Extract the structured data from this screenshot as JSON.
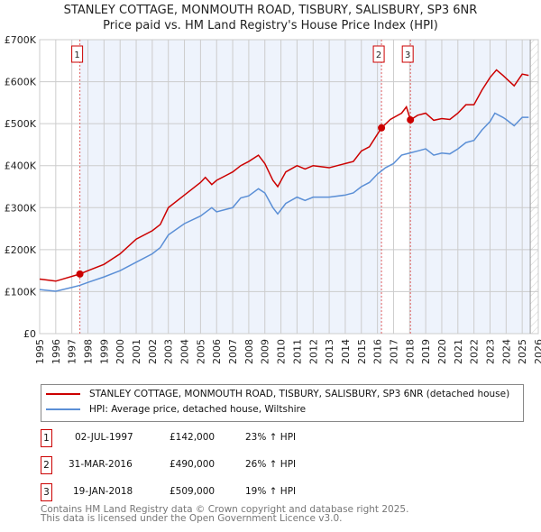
{
  "chart_data": {
    "type": "line",
    "title": "STANLEY COTTAGE, MONMOUTH ROAD, TISBURY, SALISBURY, SP3 6NR",
    "subtitle": "Price paid vs. HM Land Registry's House Price Index (HPI)",
    "xlim": [
      1995,
      2026
    ],
    "ylim": [
      0,
      700000
    ],
    "yticks": [
      {
        "v": 0,
        "label": "£0"
      },
      {
        "v": 100000,
        "label": "£100K"
      },
      {
        "v": 200000,
        "label": "£200K"
      },
      {
        "v": 300000,
        "label": "£300K"
      },
      {
        "v": 400000,
        "label": "£400K"
      },
      {
        "v": 500000,
        "label": "£500K"
      },
      {
        "v": 600000,
        "label": "£600K"
      },
      {
        "v": 700000,
        "label": "£700K"
      }
    ],
    "xticks": [
      "1995",
      "1996",
      "1997",
      "1998",
      "1999",
      "2000",
      "2001",
      "2002",
      "2003",
      "2004",
      "2005",
      "2006",
      "2007",
      "2008",
      "2009",
      "2010",
      "2011",
      "2012",
      "2013",
      "2014",
      "2015",
      "2016",
      "2017",
      "2018",
      "2019",
      "2020",
      "2021",
      "2022",
      "2023",
      "2024",
      "2025",
      "2026"
    ],
    "series": [
      {
        "name": "STANLEY COTTAGE, MONMOUTH ROAD, TISBURY, SALISBURY, SP3 6NR (detached house)",
        "color": "#cc0000",
        "x": [
          1995,
          1996,
          1997.5,
          1998,
          1999,
          2000,
          2001,
          2002,
          2002.5,
          2003,
          2004,
          2005,
          2005.3,
          2005.7,
          2006,
          2007,
          2007.5,
          2008,
          2008.6,
          2009,
          2009.5,
          2009.8,
          2010.3,
          2011,
          2011.5,
          2012,
          2013,
          2014,
          2014.5,
          2015,
          2015.5,
          2016,
          2016.25,
          2016.8,
          2017.5,
          2017.8,
          2018.05,
          2018.5,
          2019,
          2019.5,
          2020,
          2020.5,
          2021,
          2021.5,
          2022,
          2022.5,
          2023,
          2023.4,
          2023.8,
          2024.5,
          2025,
          2025.4
        ],
        "y": [
          130000,
          125000,
          142000,
          150000,
          165000,
          190000,
          225000,
          245000,
          260000,
          300000,
          330000,
          360000,
          372000,
          355000,
          365000,
          385000,
          400000,
          410000,
          425000,
          405000,
          365000,
          350000,
          385000,
          400000,
          392000,
          400000,
          395000,
          405000,
          410000,
          435000,
          445000,
          475000,
          490000,
          510000,
          525000,
          540000,
          509000,
          520000,
          525000,
          508000,
          512000,
          510000,
          525000,
          545000,
          545000,
          580000,
          610000,
          628000,
          615000,
          590000,
          618000,
          615000
        ]
      },
      {
        "name": "HPI: Average price, detached house, Wiltshire",
        "color": "#5b8fd6",
        "x": [
          1995,
          1996,
          1997,
          1997.5,
          1998,
          1999,
          2000,
          2001,
          2002,
          2002.5,
          2003,
          2004,
          2005,
          2005.7,
          2006,
          2007,
          2007.5,
          2008,
          2008.6,
          2009,
          2009.5,
          2009.8,
          2010.3,
          2011,
          2011.5,
          2012,
          2013,
          2014,
          2014.5,
          2015,
          2015.5,
          2016,
          2016.5,
          2017,
          2017.5,
          2018,
          2018.5,
          2019,
          2019.5,
          2020,
          2020.5,
          2021,
          2021.5,
          2022,
          2022.5,
          2023,
          2023.3,
          2023.8,
          2024,
          2024.5,
          2025,
          2025.4
        ],
        "y": [
          105000,
          101000,
          110000,
          115000,
          122000,
          135000,
          150000,
          170000,
          190000,
          205000,
          235000,
          262000,
          280000,
          300000,
          290000,
          300000,
          323000,
          328000,
          345000,
          335000,
          300000,
          285000,
          310000,
          325000,
          317000,
          325000,
          325000,
          330000,
          335000,
          350000,
          360000,
          380000,
          395000,
          405000,
          425000,
          430000,
          435000,
          440000,
          425000,
          430000,
          428000,
          440000,
          455000,
          460000,
          485000,
          505000,
          525000,
          515000,
          510000,
          495000,
          515000,
          515000
        ]
      }
    ],
    "sales": [
      {
        "id": "1",
        "x": 1997.5,
        "y": 142000,
        "date": "02-JUL-1997",
        "price": "£142,000",
        "hpi": "23% ↑ HPI"
      },
      {
        "id": "2",
        "x": 2016.25,
        "y": 490000,
        "date": "31-MAR-2016",
        "price": "£490,000",
        "hpi": "26% ↑ HPI"
      },
      {
        "id": "3",
        "x": 2018.05,
        "y": 509000,
        "date": "19-JAN-2018",
        "price": "£509,000",
        "hpi": "19% ↑ HPI"
      }
    ],
    "forecast_start": 2025.5,
    "grid": true,
    "legend_placement": "below"
  },
  "footer": {
    "line1": "Contains HM Land Registry data © Crown copyright and database right 2025.",
    "line2": "This data is licensed under the Open Government Licence v3.0."
  }
}
